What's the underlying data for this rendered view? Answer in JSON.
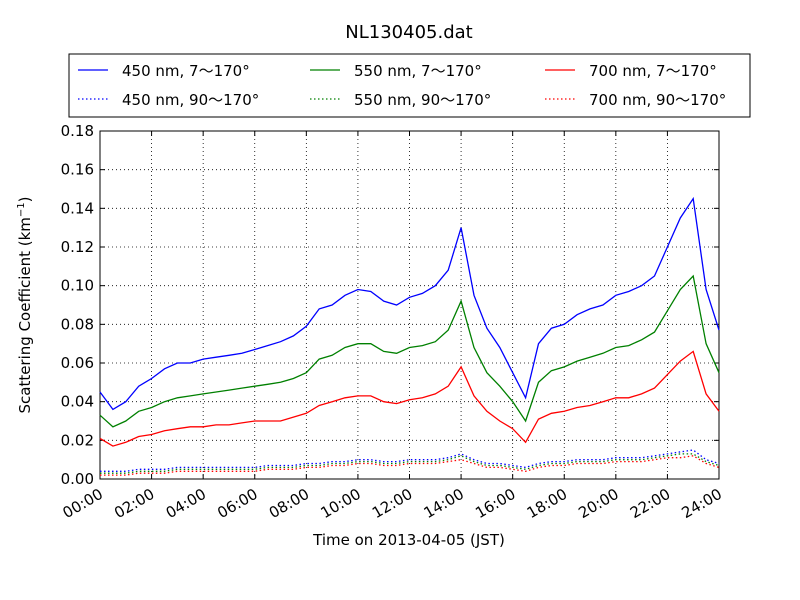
{
  "chart_data": {
    "type": "line",
    "title": "NL130405.dat",
    "xlabel": "Time on 2013-04-05 (JST)",
    "ylabel": "Scattering Coefficient (km",
    "ylabel_sup": "−1",
    "ylabel_close": ")",
    "xlim": [
      "00:00",
      "24:00"
    ],
    "ylim": [
      0,
      0.18
    ],
    "grid": true,
    "legend_position": "top (above plot, 3 columns)",
    "x_tick_labels": [
      "00:00",
      "02:00",
      "04:00",
      "06:00",
      "08:00",
      "10:00",
      "12:00",
      "14:00",
      "16:00",
      "18:00",
      "20:00",
      "22:00",
      "24:00"
    ],
    "y_tick_labels": [
      "0.00",
      "0.02",
      "0.04",
      "0.06",
      "0.08",
      "0.10",
      "0.12",
      "0.14",
      "0.16",
      "0.18"
    ],
    "y_ticks": [
      0,
      0.02,
      0.04,
      0.06,
      0.08,
      0.1,
      0.12,
      0.14,
      0.16,
      0.18
    ],
    "x": [
      "00:00",
      "00:30",
      "01:00",
      "01:30",
      "02:00",
      "02:30",
      "03:00",
      "03:30",
      "04:00",
      "04:30",
      "05:00",
      "05:30",
      "06:00",
      "06:30",
      "07:00",
      "07:30",
      "08:00",
      "08:30",
      "09:00",
      "09:30",
      "10:00",
      "10:30",
      "11:00",
      "11:30",
      "12:00",
      "12:30",
      "13:00",
      "13:30",
      "14:00",
      "14:30",
      "15:00",
      "15:30",
      "16:00",
      "16:30",
      "17:00",
      "17:30",
      "18:00",
      "18:30",
      "19:00",
      "19:30",
      "20:00",
      "20:30",
      "21:00",
      "21:30",
      "22:00",
      "22:30",
      "23:00",
      "23:30",
      "24:00"
    ],
    "series": [
      {
        "name": "450 nm, 7～170°",
        "color": "#0000ff",
        "style": "solid",
        "values": [
          0.045,
          0.036,
          0.04,
          0.048,
          0.052,
          0.057,
          0.06,
          0.06,
          0.062,
          0.063,
          0.064,
          0.065,
          0.067,
          0.069,
          0.071,
          0.074,
          0.079,
          0.088,
          0.09,
          0.095,
          0.098,
          0.097,
          0.092,
          0.09,
          0.094,
          0.096,
          0.1,
          0.108,
          0.13,
          0.095,
          0.078,
          0.068,
          0.055,
          0.042,
          0.07,
          0.078,
          0.08,
          0.085,
          0.088,
          0.09,
          0.095,
          0.097,
          0.1,
          0.105,
          0.12,
          0.135,
          0.145,
          0.098,
          0.077
        ]
      },
      {
        "name": "550 nm, 7～170°",
        "color": "#008000",
        "style": "solid",
        "values": [
          0.033,
          0.027,
          0.03,
          0.035,
          0.037,
          0.04,
          0.042,
          0.043,
          0.044,
          0.045,
          0.046,
          0.047,
          0.048,
          0.049,
          0.05,
          0.052,
          0.055,
          0.062,
          0.064,
          0.068,
          0.07,
          0.07,
          0.066,
          0.065,
          0.068,
          0.069,
          0.071,
          0.077,
          0.092,
          0.068,
          0.055,
          0.048,
          0.04,
          0.03,
          0.05,
          0.056,
          0.058,
          0.061,
          0.063,
          0.065,
          0.068,
          0.069,
          0.072,
          0.076,
          0.087,
          0.098,
          0.105,
          0.07,
          0.055
        ]
      },
      {
        "name": "700 nm, 7～170°",
        "color": "#ff0000",
        "style": "solid",
        "values": [
          0.021,
          0.017,
          0.019,
          0.022,
          0.023,
          0.025,
          0.026,
          0.027,
          0.027,
          0.028,
          0.028,
          0.029,
          0.03,
          0.03,
          0.03,
          0.032,
          0.034,
          0.038,
          0.04,
          0.042,
          0.043,
          0.043,
          0.04,
          0.039,
          0.041,
          0.042,
          0.044,
          0.048,
          0.058,
          0.043,
          0.035,
          0.03,
          0.026,
          0.019,
          0.031,
          0.034,
          0.035,
          0.037,
          0.038,
          0.04,
          0.042,
          0.042,
          0.044,
          0.047,
          0.054,
          0.061,
          0.066,
          0.044,
          0.035
        ]
      },
      {
        "name": "450 nm, 90～170°",
        "color": "#0000ff",
        "style": "dotted",
        "values": [
          0.004,
          0.004,
          0.004,
          0.005,
          0.005,
          0.005,
          0.006,
          0.006,
          0.006,
          0.006,
          0.006,
          0.006,
          0.006,
          0.007,
          0.007,
          0.007,
          0.008,
          0.008,
          0.009,
          0.009,
          0.01,
          0.01,
          0.009,
          0.009,
          0.01,
          0.01,
          0.01,
          0.011,
          0.013,
          0.01,
          0.008,
          0.008,
          0.007,
          0.006,
          0.008,
          0.009,
          0.009,
          0.01,
          0.01,
          0.01,
          0.011,
          0.011,
          0.011,
          0.012,
          0.013,
          0.014,
          0.015,
          0.01,
          0.008
        ]
      },
      {
        "name": "550 nm, 90～170°",
        "color": "#008000",
        "style": "dotted",
        "values": [
          0.003,
          0.003,
          0.003,
          0.004,
          0.004,
          0.004,
          0.005,
          0.005,
          0.005,
          0.005,
          0.005,
          0.005,
          0.005,
          0.006,
          0.006,
          0.006,
          0.007,
          0.007,
          0.008,
          0.008,
          0.009,
          0.009,
          0.008,
          0.008,
          0.009,
          0.009,
          0.009,
          0.01,
          0.012,
          0.009,
          0.007,
          0.007,
          0.006,
          0.005,
          0.007,
          0.008,
          0.008,
          0.009,
          0.009,
          0.009,
          0.01,
          0.01,
          0.01,
          0.011,
          0.012,
          0.013,
          0.013,
          0.009,
          0.007
        ]
      },
      {
        "name": "700 nm, 90～170°",
        "color": "#ff0000",
        "style": "dotted",
        "values": [
          0.002,
          0.002,
          0.002,
          0.003,
          0.003,
          0.003,
          0.004,
          0.004,
          0.004,
          0.004,
          0.004,
          0.004,
          0.004,
          0.005,
          0.005,
          0.005,
          0.006,
          0.006,
          0.007,
          0.007,
          0.008,
          0.008,
          0.007,
          0.007,
          0.008,
          0.008,
          0.008,
          0.009,
          0.01,
          0.008,
          0.006,
          0.006,
          0.005,
          0.004,
          0.006,
          0.007,
          0.007,
          0.008,
          0.008,
          0.008,
          0.009,
          0.009,
          0.009,
          0.01,
          0.011,
          0.011,
          0.012,
          0.008,
          0.006
        ]
      }
    ]
  }
}
